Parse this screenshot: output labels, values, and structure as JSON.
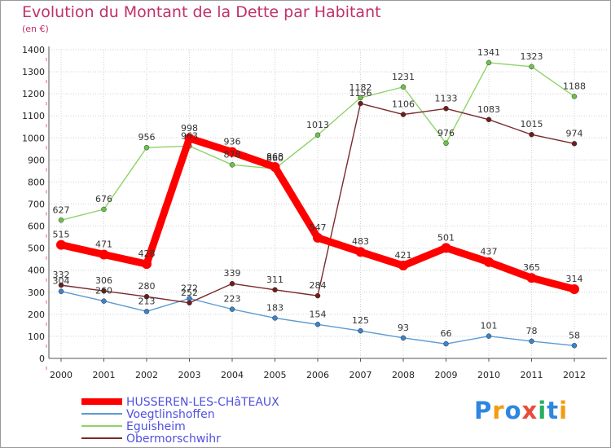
{
  "chart_data": {
    "type": "line",
    "title": "Evolution du Montant de la Dette par Habitant",
    "subtitle": "(en €)",
    "xlabel": "",
    "ylabel": "",
    "x": [
      "2000",
      "2001",
      "2002",
      "2003",
      "2004",
      "2005",
      "2006",
      "2007",
      "2008",
      "2009",
      "2010",
      "2011",
      "2012"
    ],
    "ylim": [
      0,
      1400
    ],
    "yticks": [
      0,
      100,
      200,
      300,
      400,
      500,
      600,
      700,
      800,
      900,
      1000,
      1100,
      1200,
      1300,
      1400
    ],
    "grid": true,
    "legend_position": "bottom-left",
    "series": [
      {
        "name": "HUSSEREN-LES-CHâTEAUX",
        "color": "#ff0000",
        "emphasis": true,
        "values": [
          515,
          471,
          428,
          998,
          936,
          868,
          547,
          483,
          421,
          501,
          437,
          365,
          314
        ]
      },
      {
        "name": "Voegtlinshoffen",
        "color": "#5b9bd5",
        "values": [
          304,
          260,
          213,
          272,
          223,
          183,
          154,
          125,
          93,
          66,
          101,
          78,
          58
        ]
      },
      {
        "name": "Eguisheim",
        "color": "#8ed36a",
        "values": [
          627,
          676,
          956,
          963,
          878,
          860,
          1013,
          1182,
          1231,
          976,
          1341,
          1323,
          1188
        ]
      },
      {
        "name": "Obermorschwihr",
        "color": "#7a2a2a",
        "values": [
          332,
          306,
          280,
          252,
          339,
          311,
          284,
          1156,
          1106,
          1133,
          1083,
          1015,
          974
        ]
      }
    ]
  },
  "logo": {
    "letters": [
      "P",
      "r",
      "o",
      "x",
      "i",
      "t",
      "i"
    ],
    "colors": [
      "#2e86de",
      "#f39c12",
      "#2e86de",
      "#e74c3c",
      "#27ae60",
      "#2e86de",
      "#f39c12"
    ]
  }
}
